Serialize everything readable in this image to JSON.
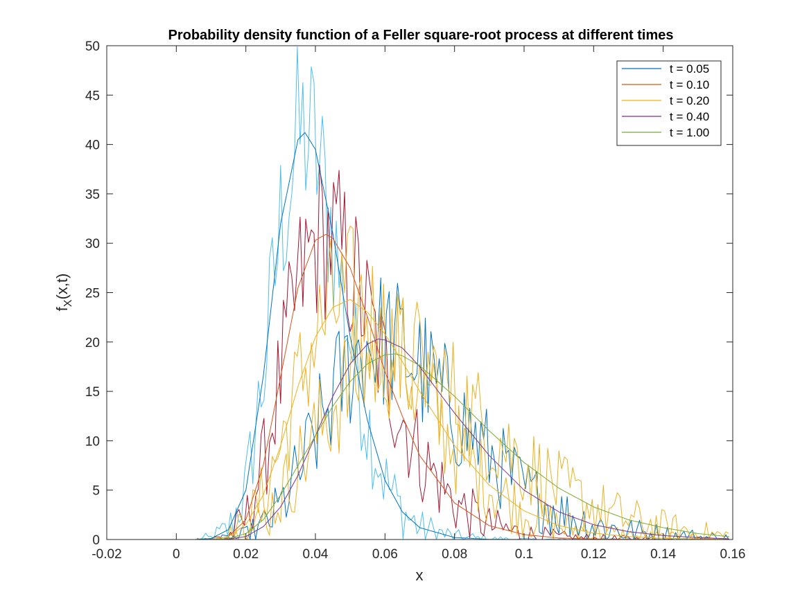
{
  "chart_data": {
    "type": "line",
    "title": "Probability density function of a Feller square-root process at different times",
    "xlabel": "x",
    "ylabel": {
      "main": "f",
      "sub": "X",
      "rest": "(x,t)"
    },
    "xlim": [
      -0.02,
      0.16
    ],
    "ylim": [
      0,
      50
    ],
    "xticks": [
      -0.02,
      0,
      0.02,
      0.04,
      0.06,
      0.08,
      0.1,
      0.12,
      0.14,
      0.16
    ],
    "xtick_labels": [
      "-0.02",
      "0",
      "0.02",
      "0.04",
      "0.06",
      "0.08",
      "0.1",
      "0.12",
      "0.14",
      "0.16"
    ],
    "yticks": [
      0,
      5,
      10,
      15,
      20,
      25,
      30,
      35,
      40,
      45,
      50
    ],
    "ytick_labels": [
      "0",
      "5",
      "10",
      "15",
      "20",
      "25",
      "30",
      "35",
      "40",
      "45",
      "50"
    ],
    "grid": false,
    "legend_position": "top-right",
    "series": [
      {
        "name": "t = 0.05",
        "color": "#0072BD",
        "empirical_color": "#4DBEEE",
        "x": [
          -0.02,
          0.005,
          0.01,
          0.015,
          0.02,
          0.025,
          0.03,
          0.035,
          0.037,
          0.04,
          0.045,
          0.05,
          0.055,
          0.06,
          0.065,
          0.07,
          0.08,
          0.09,
          0.1,
          0.12,
          0.16
        ],
        "y": [
          0,
          0,
          0.1,
          1.0,
          5.0,
          16.5,
          32.0,
          40.5,
          41.2,
          39.5,
          31.0,
          20.5,
          12.0,
          6.0,
          2.8,
          1.2,
          0.2,
          0.02,
          0,
          0,
          0
        ]
      },
      {
        "name": "t = 0.10",
        "color": "#D95319",
        "empirical_color": "#A2142F",
        "x": [
          -0.02,
          0.01,
          0.015,
          0.02,
          0.025,
          0.03,
          0.035,
          0.04,
          0.043,
          0.045,
          0.05,
          0.055,
          0.06,
          0.065,
          0.07,
          0.08,
          0.09,
          0.1,
          0.11,
          0.12,
          0.14,
          0.16
        ],
        "y": [
          0,
          0,
          0.3,
          2.0,
          7.5,
          16.5,
          25.5,
          30.3,
          30.9,
          30.5,
          27.5,
          22.5,
          17.0,
          12.5,
          8.5,
          3.7,
          1.4,
          0.5,
          0.15,
          0.05,
          0,
          0
        ]
      },
      {
        "name": "t = 0.20",
        "color": "#EDB120",
        "empirical_color": "#EDB120",
        "x": [
          -0.02,
          0.01,
          0.015,
          0.02,
          0.025,
          0.03,
          0.035,
          0.04,
          0.045,
          0.05,
          0.055,
          0.06,
          0.065,
          0.07,
          0.08,
          0.09,
          0.1,
          0.11,
          0.12,
          0.13,
          0.14,
          0.16
        ],
        "y": [
          0,
          0,
          0.3,
          1.5,
          4.5,
          9.5,
          15.5,
          20.5,
          23.5,
          24.3,
          23.0,
          20.8,
          18.0,
          15.0,
          9.5,
          5.5,
          2.9,
          1.4,
          0.65,
          0.3,
          0.12,
          0.02
        ]
      },
      {
        "name": "t = 0.40",
        "color": "#7E2F8E",
        "empirical_color": "#0072BD",
        "x": [
          -0.02,
          0.01,
          0.015,
          0.02,
          0.025,
          0.03,
          0.035,
          0.04,
          0.045,
          0.05,
          0.055,
          0.058,
          0.06,
          0.065,
          0.07,
          0.08,
          0.09,
          0.1,
          0.11,
          0.12,
          0.13,
          0.14,
          0.15,
          0.16
        ],
        "y": [
          0,
          0,
          0.05,
          0.3,
          1.3,
          3.3,
          6.5,
          10.5,
          14.5,
          17.8,
          19.8,
          20.3,
          20.2,
          19.4,
          17.5,
          12.8,
          8.5,
          5.0,
          2.8,
          1.5,
          0.8,
          0.4,
          0.2,
          0.05
        ]
      },
      {
        "name": "t = 1.00",
        "color": "#77AC30",
        "empirical_color": "#EDB120",
        "x": [
          -0.02,
          0.01,
          0.015,
          0.02,
          0.025,
          0.03,
          0.035,
          0.04,
          0.045,
          0.05,
          0.055,
          0.06,
          0.063,
          0.065,
          0.07,
          0.08,
          0.09,
          0.1,
          0.11,
          0.12,
          0.13,
          0.14,
          0.15,
          0.16
        ],
        "y": [
          0,
          0,
          0.1,
          0.6,
          2.0,
          4.5,
          7.5,
          10.5,
          13.5,
          16.0,
          17.8,
          18.7,
          18.8,
          18.6,
          17.6,
          14.5,
          11.0,
          7.8,
          5.2,
          3.3,
          2.0,
          1.2,
          0.6,
          0.25
        ]
      }
    ]
  }
}
